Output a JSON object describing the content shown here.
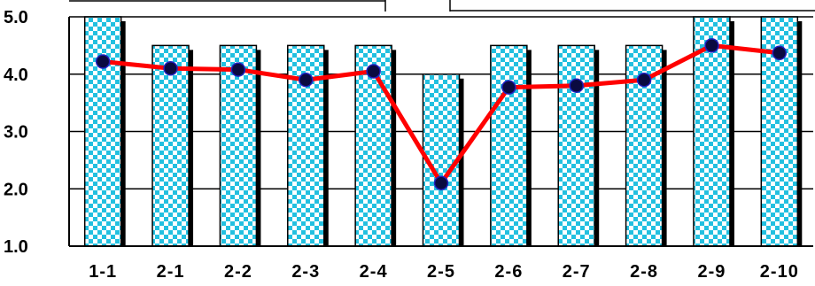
{
  "chart_data": {
    "type": "bar",
    "categories": [
      "1-1",
      "2-1",
      "2-2",
      "2-3",
      "2-4",
      "2-5",
      "2-6",
      "2-7",
      "2-8",
      "2-9",
      "2-10"
    ],
    "series": [
      {
        "type": "bar",
        "values": [
          5.0,
          4.5,
          4.5,
          4.5,
          4.5,
          4.0,
          4.5,
          4.5,
          4.5,
          5.0,
          5.0
        ]
      },
      {
        "type": "line",
        "values": [
          4.22,
          4.1,
          4.08,
          3.9,
          4.05,
          2.1,
          3.77,
          3.8,
          3.9,
          4.5,
          4.37
        ]
      }
    ],
    "yticks": [
      "1.0",
      "2.0",
      "3.0",
      "4.0",
      "5.0"
    ],
    "ylim": [
      1.0,
      5.0
    ],
    "title": "",
    "xlabel": "",
    "ylabel": "",
    "grid": "horizontal",
    "colors": {
      "bar_checker_a": "#22c0e0",
      "bar_checker_b": "#ffffff",
      "bar_shadow": "#000000",
      "line": "#ff0000",
      "marker": "#0a0a40",
      "marker_edge": "#2020c0"
    }
  }
}
